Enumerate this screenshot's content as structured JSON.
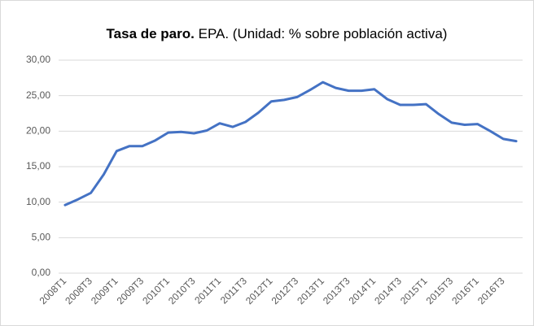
{
  "chart_data": {
    "type": "line",
    "title": "Tasa de paro.",
    "subtitle": "EPA. (Unidad: % sobre población activa)",
    "categories": [
      "2008T1",
      null,
      "2008T3",
      null,
      "2009T1",
      null,
      "2009T3",
      null,
      "2010T1",
      null,
      "2010T3",
      null,
      "2011T1",
      null,
      "2011T3",
      null,
      "2012T1",
      null,
      "2012T3",
      null,
      "2013T1",
      null,
      "2013T3",
      null,
      "2014T1",
      null,
      "2014T3",
      null,
      "2015T1",
      null,
      "2015T3",
      null,
      "2016T1",
      null,
      "2016T3",
      null
    ],
    "series": [
      {
        "color": "#4472c4",
        "values": [
          9.6,
          10.4,
          11.3,
          13.9,
          17.2,
          17.9,
          17.9,
          18.7,
          19.8,
          19.9,
          19.7,
          20.1,
          21.1,
          20.6,
          21.3,
          22.6,
          24.2,
          24.4,
          24.8,
          25.8,
          26.9,
          26.1,
          25.7,
          25.7,
          25.9,
          24.5,
          23.7,
          23.7,
          23.8,
          22.4,
          21.2,
          20.9,
          21.0,
          20.0,
          18.9,
          18.6
        ]
      }
    ],
    "ylim": [
      0,
      30
    ],
    "yticks": [
      {
        "value": 0,
        "label": "0,00"
      },
      {
        "value": 5,
        "label": "5,00"
      },
      {
        "value": 10,
        "label": "10,00"
      },
      {
        "value": 15,
        "label": "15,00"
      },
      {
        "value": 20,
        "label": "20,00"
      },
      {
        "value": 25,
        "label": "25,00"
      },
      {
        "value": 30,
        "label": "30,00"
      }
    ],
    "grid": true
  }
}
